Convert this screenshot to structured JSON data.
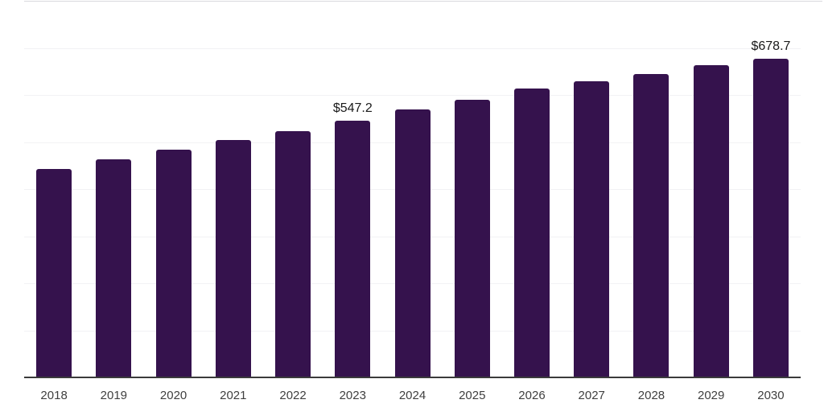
{
  "chart_data": {
    "type": "bar",
    "title": "",
    "xlabel": "",
    "ylabel": "",
    "categories": [
      "2018",
      "2019",
      "2020",
      "2021",
      "2022",
      "2023",
      "2024",
      "2025",
      "2026",
      "2027",
      "2028",
      "2029",
      "2030"
    ],
    "values": [
      444.6,
      465.2,
      485.3,
      506.0,
      525.3,
      547.2,
      571.0,
      592.3,
      616.1,
      630.4,
      646.0,
      664.8,
      678.7
    ],
    "data_labels": [
      "",
      "",
      "",
      "",
      "",
      "$547.2",
      "",
      "",
      "",
      "",
      "",
      "",
      "$678.7"
    ],
    "ylim": [
      0,
      800
    ],
    "gridline_interval": 100,
    "grid": "horizontal, no y tick labels",
    "legend_position": "none",
    "colors": {
      "bar": "#35124d",
      "gridline": "#f2f2f4",
      "top_border": "#d9d9de",
      "axis_line": "#3b3b3b",
      "data_label_text": "#1a1a1a",
      "x_label_text": "#3f3f3f",
      "background": "#ffffff"
    }
  }
}
